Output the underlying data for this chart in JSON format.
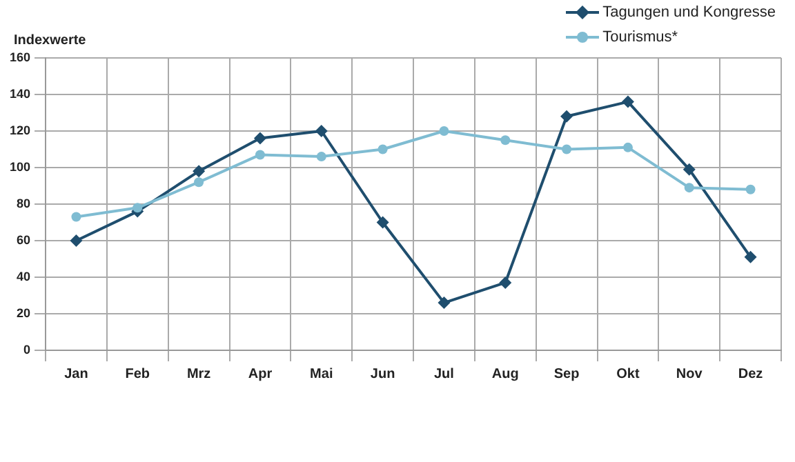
{
  "chart_data": {
    "type": "line",
    "ylabel": "Indexwerte",
    "categories": [
      "Jan",
      "Feb",
      "Mrz",
      "Apr",
      "Mai",
      "Jun",
      "Jul",
      "Aug",
      "Sep",
      "Okt",
      "Nov",
      "Dez"
    ],
    "series": [
      {
        "name": "Tagungen und Kongresse",
        "color": "#1f4e6e",
        "marker": "diamond",
        "values": [
          60,
          76,
          98,
          116,
          120,
          70,
          26,
          37,
          128,
          136,
          99,
          51
        ]
      },
      {
        "name": "Tourismus*",
        "color": "#7fbcd2",
        "marker": "circle",
        "values": [
          73,
          78,
          92,
          107,
          106,
          110,
          120,
          115,
          110,
          111,
          89,
          88
        ]
      }
    ],
    "ylim": [
      0,
      160
    ],
    "yticks": [
      0,
      20,
      40,
      60,
      80,
      100,
      120,
      140,
      160
    ],
    "grid": true,
    "legend": "top right",
    "line_style": "solid"
  }
}
